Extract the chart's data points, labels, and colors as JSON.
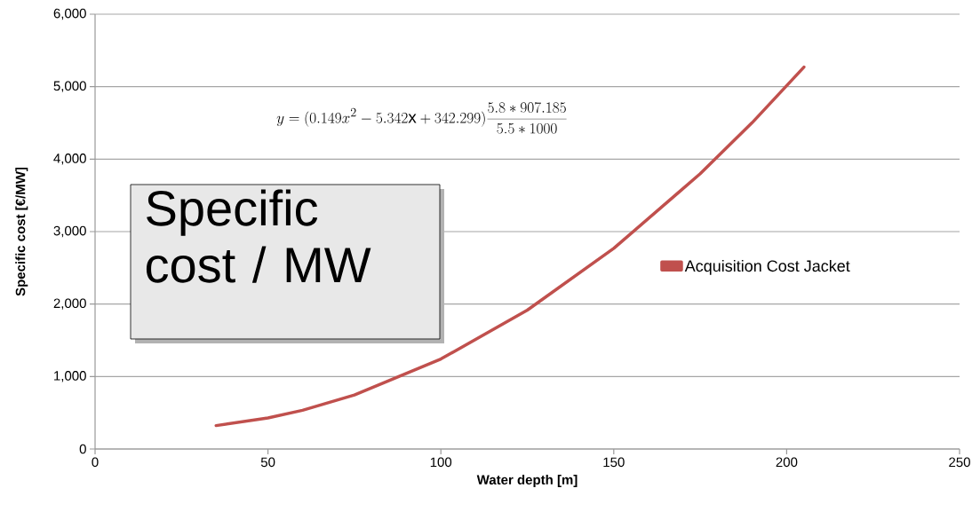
{
  "chart_data": {
    "type": "line",
    "xlabel": "Water depth [m]",
    "ylabel": "Specific cost [€/MW]",
    "series": [
      {
        "name": "Acquisition Cost Jacket",
        "color": "#c0504d",
        "x": [
          35,
          50,
          60,
          75,
          100,
          125,
          150,
          175,
          190,
          205
        ],
        "values": [
          323,
          428,
          534,
          746,
          1242,
          1916,
          2768,
          3799,
          4502,
          5270
        ]
      }
    ],
    "xlim": [
      0,
      250
    ],
    "xticks": [
      0,
      50,
      100,
      150,
      200,
      250
    ],
    "ylim": [
      0,
      6000
    ],
    "yticks": [
      0,
      {
        "value": 1000,
        "label": "1,000"
      },
      {
        "value": 2000,
        "label": "2,000"
      },
      {
        "value": 3000,
        "label": "3,000"
      },
      {
        "value": 4000,
        "label": "4,000"
      },
      {
        "value": 5000,
        "label": "5,000"
      },
      {
        "value": 6000,
        "label": "6,000"
      }
    ],
    "grid": "y",
    "legend": "right",
    "marker": "none",
    "line_style": "solid",
    "annotations": [
      "y=(0.149x^{2}-5.342\\mathrm{x}+342.299)\\frac{5.8*907.185}{5.5*1000}",
      "Specific cost / MW"
    ]
  }
}
